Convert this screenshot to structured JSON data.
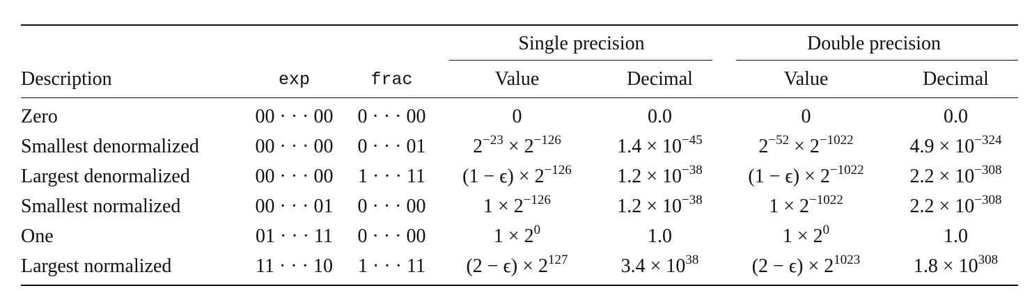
{
  "group_headers": {
    "single": "Single precision",
    "double": "Double precision"
  },
  "headers": {
    "description": "Description",
    "exp": "exp",
    "frac": "frac",
    "single_value": "Value",
    "single_decimal": "Decimal",
    "double_value": "Value",
    "double_decimal": "Decimal"
  },
  "rows": [
    {
      "description": "Zero",
      "exp": "00 · · · 00",
      "frac": "0 · · · 00",
      "cells": [
        [
          {
            "t": "0"
          }
        ],
        [
          {
            "t": "0.0"
          }
        ],
        [
          {
            "t": "0"
          }
        ],
        [
          {
            "t": "0.0"
          }
        ]
      ]
    },
    {
      "description": "Smallest denormalized",
      "exp": "00 · · · 00",
      "frac": "0 · · · 01",
      "cells": [
        [
          {
            "t": "2"
          },
          {
            "sup": "−23"
          },
          {
            "t": " × 2"
          },
          {
            "sup": "−126"
          }
        ],
        [
          {
            "t": "1.4 × 10"
          },
          {
            "sup": "−45"
          }
        ],
        [
          {
            "t": "2"
          },
          {
            "sup": "−52"
          },
          {
            "t": " × 2"
          },
          {
            "sup": "−1022"
          }
        ],
        [
          {
            "t": "4.9 × 10"
          },
          {
            "sup": "−324"
          }
        ]
      ]
    },
    {
      "description": "Largest denormalized",
      "exp": "00 · · · 00",
      "frac": "1 · · · 11",
      "cells": [
        [
          {
            "t": "(1 − ϵ) × 2"
          },
          {
            "sup": "−126"
          }
        ],
        [
          {
            "t": "1.2 × 10"
          },
          {
            "sup": "−38"
          }
        ],
        [
          {
            "t": "(1 − ϵ) × 2"
          },
          {
            "sup": "−1022"
          }
        ],
        [
          {
            "t": "2.2 × 10"
          },
          {
            "sup": "−308"
          }
        ]
      ]
    },
    {
      "description": "Smallest normalized",
      "exp": "00 · · · 01",
      "frac": "0 · · · 00",
      "cells": [
        [
          {
            "t": "1 × 2"
          },
          {
            "sup": "−126"
          }
        ],
        [
          {
            "t": "1.2 × 10"
          },
          {
            "sup": "−38"
          }
        ],
        [
          {
            "t": "1 × 2"
          },
          {
            "sup": "−1022"
          }
        ],
        [
          {
            "t": "2.2 × 10"
          },
          {
            "sup": "−308"
          }
        ]
      ]
    },
    {
      "description": "One",
      "exp": "01 · · · 11",
      "frac": "0 · · · 00",
      "cells": [
        [
          {
            "t": "1 × 2"
          },
          {
            "sup": "0"
          }
        ],
        [
          {
            "t": "1.0"
          }
        ],
        [
          {
            "t": "1 × 2"
          },
          {
            "sup": "0"
          }
        ],
        [
          {
            "t": "1.0"
          }
        ]
      ]
    },
    {
      "description": "Largest normalized",
      "exp": "11 · · · 10",
      "frac": "1 · · · 11",
      "cells": [
        [
          {
            "t": "(2 − ϵ) × 2"
          },
          {
            "sup": "127"
          }
        ],
        [
          {
            "t": "3.4 × 10"
          },
          {
            "sup": "38"
          }
        ],
        [
          {
            "t": "(2 − ϵ) × 2"
          },
          {
            "sup": "1023"
          }
        ],
        [
          {
            "t": "1.8 × 10"
          },
          {
            "sup": "308"
          }
        ]
      ]
    }
  ]
}
